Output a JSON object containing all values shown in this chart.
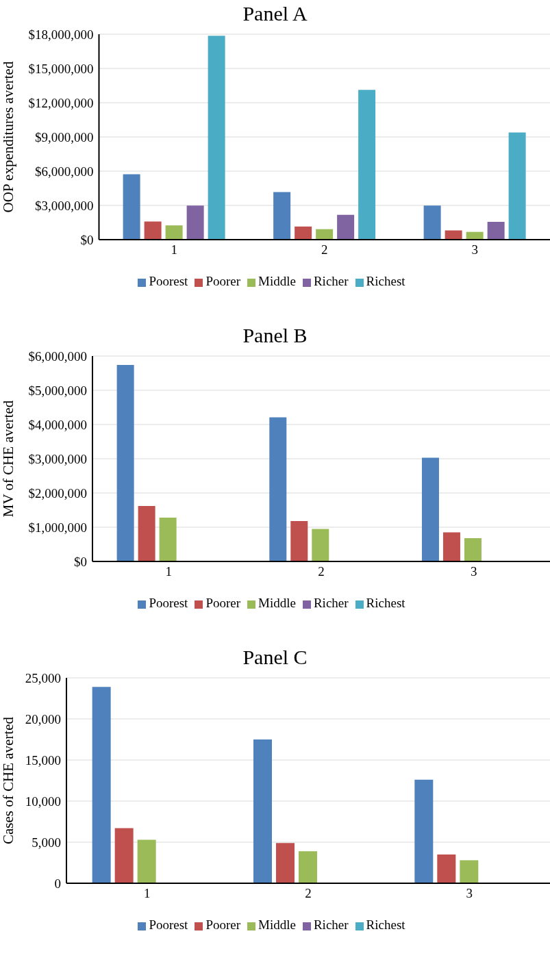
{
  "chart_data": [
    {
      "type": "bar",
      "title": "Panel A",
      "ylabel": "OOP expenditures averted",
      "categories": [
        "1",
        "2",
        "3"
      ],
      "series": [
        {
          "name": "Poorest",
          "color": "#4f81bd",
          "values": [
            5730000,
            4170000,
            2980000
          ]
        },
        {
          "name": "Poorer",
          "color": "#c0504d",
          "values": [
            1590000,
            1150000,
            810000
          ]
        },
        {
          "name": "Middle",
          "color": "#9bbb59",
          "values": [
            1250000,
            920000,
            680000
          ]
        },
        {
          "name": "Richer",
          "color": "#8064a2",
          "values": [
            2980000,
            2170000,
            1560000
          ]
        },
        {
          "name": "Richest",
          "color": "#4bacc6",
          "values": [
            17860000,
            13120000,
            9390000
          ]
        }
      ],
      "ylim": [
        0,
        18000000
      ],
      "yticks": [
        {
          "value": 0,
          "label": "$0"
        },
        {
          "value": 3000000,
          "label": "$3,000,000"
        },
        {
          "value": 6000000,
          "label": "$6,000,000"
        },
        {
          "value": 9000000,
          "label": "$9,000,000"
        },
        {
          "value": 12000000,
          "label": "$12,000,000"
        },
        {
          "value": 15000000,
          "label": "$15,000,000"
        },
        {
          "value": 18000000,
          "label": "$18,000,000"
        }
      ],
      "grid": "y",
      "legend": "bottom"
    },
    {
      "type": "bar",
      "title": "Panel B",
      "ylabel": "MV of CHE averted",
      "categories": [
        "1",
        "2",
        "3"
      ],
      "series": [
        {
          "name": "Poorest",
          "color": "#4f81bd",
          "values": [
            5740000,
            4210000,
            3030000
          ]
        },
        {
          "name": "Poorer",
          "color": "#c0504d",
          "values": [
            1620000,
            1180000,
            850000
          ]
        },
        {
          "name": "Middle",
          "color": "#9bbb59",
          "values": [
            1280000,
            950000,
            680000
          ]
        },
        {
          "name": "Richer",
          "color": "#8064a2",
          "values": [
            0,
            0,
            0
          ]
        },
        {
          "name": "Richest",
          "color": "#4bacc6",
          "values": [
            0,
            0,
            0
          ]
        }
      ],
      "ylim": [
        0,
        6000000
      ],
      "yticks": [
        {
          "value": 0,
          "label": "$0"
        },
        {
          "value": 1000000,
          "label": "$1,000,000"
        },
        {
          "value": 2000000,
          "label": "$2,000,000"
        },
        {
          "value": 3000000,
          "label": "$3,000,000"
        },
        {
          "value": 4000000,
          "label": "$4,000,000"
        },
        {
          "value": 5000000,
          "label": "$5,000,000"
        },
        {
          "value": 6000000,
          "label": "$6,000,000"
        }
      ],
      "grid": "y",
      "legend": "bottom"
    },
    {
      "type": "bar",
      "title": "Panel C",
      "ylabel": "Cases of CHE averted",
      "categories": [
        "1",
        "2",
        "3"
      ],
      "series": [
        {
          "name": "Poorest",
          "color": "#4f81bd",
          "values": [
            23900,
            17500,
            12600
          ]
        },
        {
          "name": "Poorer",
          "color": "#c0504d",
          "values": [
            6700,
            4900,
            3500
          ]
        },
        {
          "name": "Middle",
          "color": "#9bbb59",
          "values": [
            5300,
            3900,
            2800
          ]
        },
        {
          "name": "Richer",
          "color": "#8064a2",
          "values": [
            0,
            0,
            0
          ]
        },
        {
          "name": "Richest",
          "color": "#4bacc6",
          "values": [
            0,
            0,
            0
          ]
        }
      ],
      "ylim": [
        0,
        25000
      ],
      "yticks": [
        0,
        {
          "value": 5000,
          "label": "5,000"
        },
        {
          "value": 10000,
          "label": "10,000"
        },
        {
          "value": 15000,
          "label": "15,000"
        },
        {
          "value": 20000,
          "label": "20,000"
        },
        {
          "value": 25000,
          "label": "25,000"
        }
      ],
      "grid": "y",
      "legend": "bottom"
    }
  ]
}
